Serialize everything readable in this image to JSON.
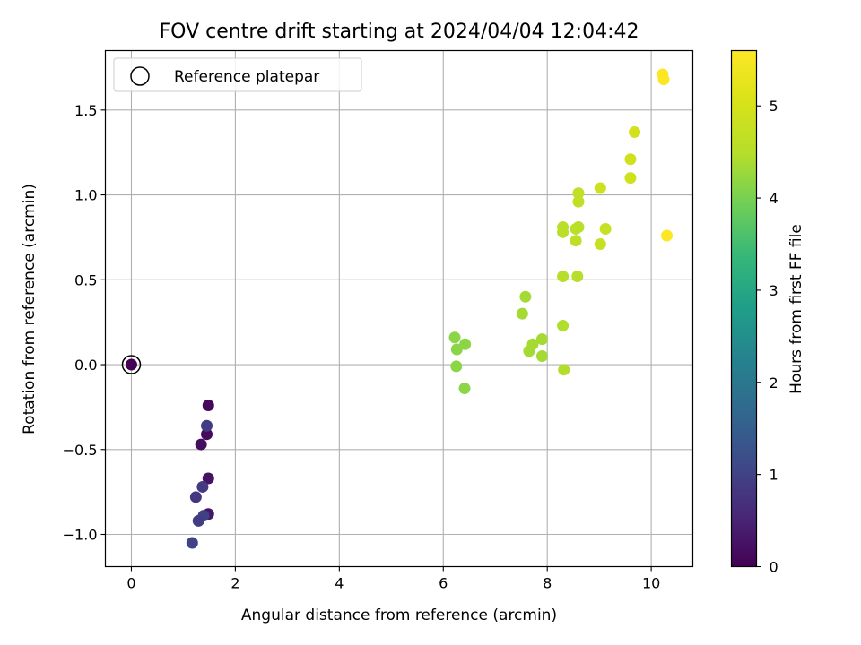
{
  "chart_data": {
    "type": "scatter",
    "title": "FOV centre drift starting at 2024/04/04 12:04:42",
    "xlabel": "Angular distance from reference (arcmin)",
    "ylabel": "Rotation from reference (arcmin)",
    "xlim": [
      -0.5,
      10.8
    ],
    "ylim": [
      -1.19,
      1.85
    ],
    "x_ticks": [
      0,
      2,
      4,
      6,
      8,
      10
    ],
    "y_ticks": [
      -1.0,
      -0.5,
      0.0,
      0.5,
      1.0,
      1.5
    ],
    "grid": true,
    "legend": {
      "placement": "upper-left",
      "entries": [
        "Reference platepar"
      ]
    },
    "colorbar": {
      "label": "Hours from first FF file",
      "range": [
        0,
        5.6
      ],
      "ticks": [
        0,
        1,
        2,
        3,
        4,
        5
      ],
      "colormap": "viridis"
    },
    "reference_point": {
      "x": 0,
      "y": 0
    },
    "points": [
      {
        "x": 0.0,
        "y": 0.0,
        "c": 0.0
      },
      {
        "x": 1.48,
        "y": -0.24,
        "c": 0.1
      },
      {
        "x": 1.45,
        "y": -0.41,
        "c": 0.15
      },
      {
        "x": 1.34,
        "y": -0.47,
        "c": 0.2
      },
      {
        "x": 1.48,
        "y": -0.67,
        "c": 0.25
      },
      {
        "x": 1.48,
        "y": -0.88,
        "c": 0.3
      },
      {
        "x": 1.45,
        "y": -0.36,
        "c": 0.9
      },
      {
        "x": 1.37,
        "y": -0.72,
        "c": 0.85
      },
      {
        "x": 1.24,
        "y": -0.78,
        "c": 0.8
      },
      {
        "x": 1.39,
        "y": -0.89,
        "c": 0.95
      },
      {
        "x": 1.29,
        "y": -0.92,
        "c": 0.9
      },
      {
        "x": 1.17,
        "y": -1.05,
        "c": 1.0
      },
      {
        "x": 6.22,
        "y": 0.16,
        "c": 4.15
      },
      {
        "x": 6.26,
        "y": 0.09,
        "c": 4.15
      },
      {
        "x": 6.42,
        "y": 0.12,
        "c": 4.15
      },
      {
        "x": 6.25,
        "y": -0.01,
        "c": 4.15
      },
      {
        "x": 6.41,
        "y": -0.14,
        "c": 4.15
      },
      {
        "x": 7.52,
        "y": 0.3,
        "c": 4.35
      },
      {
        "x": 7.58,
        "y": 0.4,
        "c": 4.35
      },
      {
        "x": 7.72,
        "y": 0.12,
        "c": 4.35
      },
      {
        "x": 7.65,
        "y": 0.08,
        "c": 4.35
      },
      {
        "x": 7.9,
        "y": 0.15,
        "c": 4.35
      },
      {
        "x": 7.9,
        "y": 0.05,
        "c": 4.35
      },
      {
        "x": 8.3,
        "y": 0.23,
        "c": 4.45
      },
      {
        "x": 8.32,
        "y": -0.03,
        "c": 4.45
      },
      {
        "x": 8.3,
        "y": 0.52,
        "c": 4.5
      },
      {
        "x": 8.58,
        "y": 0.52,
        "c": 4.5
      },
      {
        "x": 8.3,
        "y": 0.78,
        "c": 4.55
      },
      {
        "x": 8.3,
        "y": 0.81,
        "c": 4.55
      },
      {
        "x": 8.55,
        "y": 0.8,
        "c": 4.55
      },
      {
        "x": 8.6,
        "y": 0.81,
        "c": 4.55
      },
      {
        "x": 8.55,
        "y": 0.73,
        "c": 4.6
      },
      {
        "x": 8.6,
        "y": 0.96,
        "c": 4.65
      },
      {
        "x": 8.6,
        "y": 1.01,
        "c": 4.65
      },
      {
        "x": 9.02,
        "y": 0.71,
        "c": 4.75
      },
      {
        "x": 9.12,
        "y": 0.8,
        "c": 4.75
      },
      {
        "x": 9.02,
        "y": 1.04,
        "c": 4.85
      },
      {
        "x": 9.6,
        "y": 1.21,
        "c": 4.9
      },
      {
        "x": 9.6,
        "y": 1.1,
        "c": 4.9
      },
      {
        "x": 9.68,
        "y": 1.37,
        "c": 4.95
      },
      {
        "x": 10.22,
        "y": 1.71,
        "c": 5.6
      },
      {
        "x": 10.24,
        "y": 1.68,
        "c": 5.6
      },
      {
        "x": 10.3,
        "y": 0.76,
        "c": 5.6
      }
    ]
  }
}
